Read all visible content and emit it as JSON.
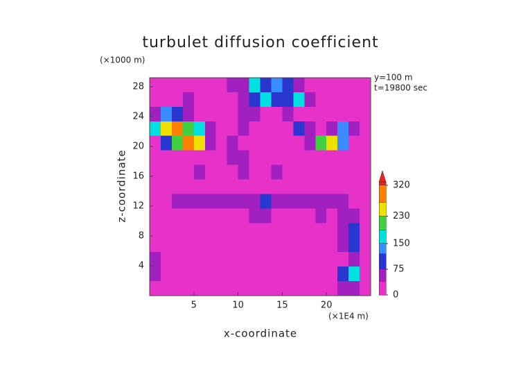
{
  "chart_data": {
    "type": "heatmap",
    "title": "turbulet diffusion coefficient",
    "y_unit": "(×1000 m)",
    "x_unit": "(×1E4 m)",
    "annotations": [
      "y=100 m",
      "t=19800 sec"
    ],
    "xlabel": "x-coordinate",
    "ylabel": "z-coordinate",
    "xlim": [
      0,
      25
    ],
    "ylim": [
      0,
      29.2
    ],
    "xticks": [
      5,
      10,
      15,
      20
    ],
    "yticks": [
      4,
      8,
      12,
      16,
      20,
      24,
      28
    ],
    "clim": [
      0,
      330
    ],
    "cticks": [
      0,
      75,
      150,
      230,
      320
    ],
    "colormap": [
      [
        0,
        "#e632c8"
      ],
      [
        40,
        "#a020c0"
      ],
      [
        75,
        "#2a36d0"
      ],
      [
        120,
        "#3a8cff"
      ],
      [
        150,
        "#00e0e0"
      ],
      [
        190,
        "#40d040"
      ],
      [
        230,
        "#f0e000"
      ],
      [
        270,
        "#ff8000"
      ],
      [
        320,
        "#f02020"
      ]
    ],
    "z": [
      [
        10,
        10,
        10,
        10,
        10,
        10,
        10,
        40,
        60,
        150,
        90,
        120,
        110,
        60,
        30,
        10,
        10,
        10,
        20,
        10
      ],
      [
        10,
        10,
        20,
        60,
        30,
        10,
        20,
        30,
        40,
        90,
        160,
        80,
        100,
        180,
        60,
        20,
        10,
        10,
        10,
        10
      ],
      [
        60,
        120,
        90,
        40,
        20,
        10,
        10,
        30,
        40,
        60,
        20,
        30,
        40,
        20,
        30,
        10,
        10,
        20,
        10,
        10
      ],
      [
        180,
        260,
        280,
        220,
        160,
        60,
        10,
        20,
        40,
        30,
        10,
        10,
        20,
        90,
        60,
        20,
        70,
        140,
        60,
        10
      ],
      [
        20,
        80,
        200,
        300,
        240,
        60,
        10,
        40,
        20,
        10,
        10,
        10,
        20,
        30,
        60,
        200,
        260,
        120,
        20,
        10
      ],
      [
        10,
        10,
        10,
        20,
        10,
        10,
        10,
        40,
        40,
        10,
        10,
        10,
        10,
        10,
        20,
        20,
        10,
        10,
        10,
        10
      ],
      [
        10,
        10,
        10,
        10,
        60,
        30,
        10,
        20,
        40,
        20,
        20,
        40,
        10,
        10,
        10,
        10,
        30,
        10,
        10,
        10
      ],
      [
        10,
        10,
        10,
        10,
        10,
        10,
        10,
        10,
        20,
        30,
        20,
        10,
        10,
        10,
        10,
        10,
        10,
        10,
        10,
        10
      ],
      [
        10,
        20,
        40,
        60,
        70,
        50,
        40,
        60,
        50,
        60,
        80,
        60,
        50,
        40,
        50,
        60,
        70,
        40,
        30,
        20
      ],
      [
        10,
        10,
        10,
        20,
        30,
        30,
        20,
        30,
        20,
        40,
        40,
        20,
        30,
        20,
        20,
        40,
        20,
        60,
        40,
        20
      ],
      [
        10,
        10,
        10,
        10,
        10,
        10,
        10,
        10,
        10,
        20,
        30,
        20,
        10,
        10,
        10,
        10,
        20,
        50,
        80,
        20
      ],
      [
        10,
        10,
        10,
        10,
        10,
        10,
        10,
        10,
        10,
        20,
        20,
        10,
        10,
        10,
        10,
        10,
        10,
        40,
        90,
        20
      ],
      [
        40,
        10,
        10,
        10,
        10,
        10,
        10,
        10,
        10,
        10,
        10,
        10,
        10,
        10,
        10,
        10,
        10,
        30,
        70,
        10
      ],
      [
        60,
        10,
        10,
        10,
        10,
        10,
        10,
        10,
        10,
        10,
        10,
        10,
        10,
        10,
        10,
        10,
        10,
        90,
        150,
        10
      ],
      [
        10,
        10,
        10,
        10,
        10,
        10,
        10,
        10,
        10,
        10,
        10,
        10,
        10,
        10,
        10,
        10,
        10,
        40,
        60,
        10
      ]
    ]
  }
}
